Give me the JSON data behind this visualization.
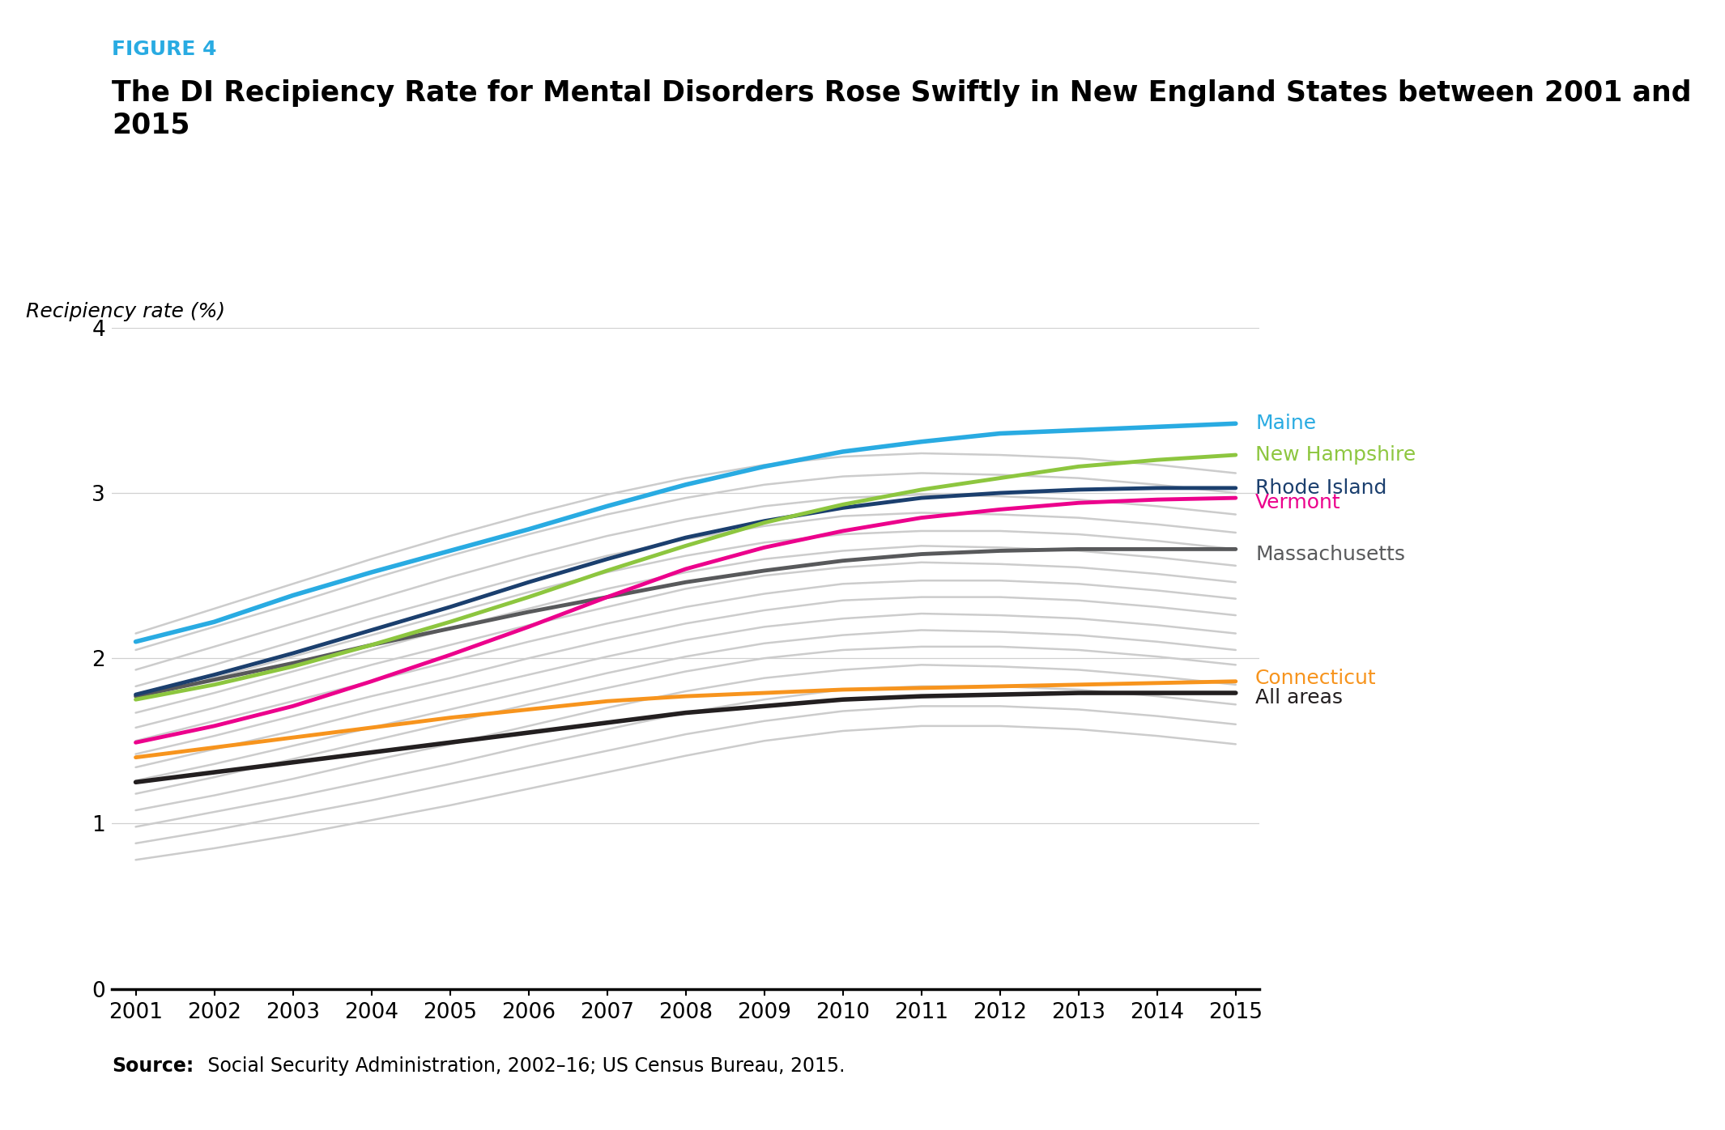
{
  "figure_label": "FIGURE 4",
  "figure_label_color": "#29ABE2",
  "title": "The DI Recipiency Rate for Mental Disorders Rose Swiftly in New England States between 2001 and 2015",
  "ylabel": "Recipiency rate (%)",
  "years": [
    2001,
    2002,
    2003,
    2004,
    2005,
    2006,
    2007,
    2008,
    2009,
    2010,
    2011,
    2012,
    2013,
    2014,
    2015
  ],
  "source_bold": "Source:",
  "source_text": " Social Security Administration, 2002–16; US Census Bureau, 2015.",
  "highlighted_lines": {
    "Maine": {
      "color": "#29ABE2",
      "lw": 4.0,
      "values": [
        2.1,
        2.22,
        2.38,
        2.52,
        2.65,
        2.78,
        2.92,
        3.05,
        3.16,
        3.25,
        3.31,
        3.36,
        3.38,
        3.4,
        3.42
      ]
    },
    "New Hampshire": {
      "color": "#8DC63F",
      "lw": 3.5,
      "values": [
        1.75,
        1.84,
        1.95,
        2.08,
        2.22,
        2.37,
        2.53,
        2.68,
        2.82,
        2.93,
        3.02,
        3.09,
        3.16,
        3.2,
        3.23
      ]
    },
    "Rhode Island": {
      "color": "#1B3F6E",
      "lw": 3.5,
      "values": [
        1.78,
        1.9,
        2.03,
        2.17,
        2.31,
        2.46,
        2.6,
        2.73,
        2.83,
        2.91,
        2.97,
        3.0,
        3.02,
        3.03,
        3.03
      ]
    },
    "Vermont": {
      "color": "#EC008C",
      "lw": 3.5,
      "values": [
        1.49,
        1.59,
        1.71,
        1.86,
        2.02,
        2.19,
        2.37,
        2.54,
        2.67,
        2.77,
        2.85,
        2.9,
        2.94,
        2.96,
        2.97
      ]
    },
    "Massachusetts": {
      "color": "#58595B",
      "lw": 3.5,
      "values": [
        1.77,
        1.87,
        1.97,
        2.08,
        2.18,
        2.28,
        2.37,
        2.46,
        2.53,
        2.59,
        2.63,
        2.65,
        2.66,
        2.66,
        2.66
      ]
    },
    "Connecticut": {
      "color": "#F7941D",
      "lw": 3.5,
      "values": [
        1.4,
        1.46,
        1.52,
        1.58,
        1.64,
        1.69,
        1.74,
        1.77,
        1.79,
        1.81,
        1.82,
        1.83,
        1.84,
        1.85,
        1.86
      ]
    },
    "All areas": {
      "color": "#231F20",
      "lw": 4.0,
      "values": [
        1.25,
        1.31,
        1.37,
        1.43,
        1.49,
        1.55,
        1.61,
        1.67,
        1.71,
        1.75,
        1.77,
        1.78,
        1.79,
        1.79,
        1.79
      ]
    }
  },
  "gray_lines": [
    [
      0.78,
      0.85,
      0.93,
      1.02,
      1.11,
      1.21,
      1.31,
      1.41,
      1.5,
      1.56,
      1.59,
      1.59,
      1.57,
      1.53,
      1.48
    ],
    [
      0.88,
      0.96,
      1.05,
      1.14,
      1.24,
      1.34,
      1.44,
      1.54,
      1.62,
      1.68,
      1.71,
      1.71,
      1.69,
      1.65,
      1.6
    ],
    [
      0.98,
      1.07,
      1.16,
      1.26,
      1.36,
      1.47,
      1.57,
      1.67,
      1.75,
      1.81,
      1.83,
      1.83,
      1.81,
      1.77,
      1.72
    ],
    [
      1.08,
      1.17,
      1.27,
      1.38,
      1.48,
      1.59,
      1.7,
      1.8,
      1.88,
      1.93,
      1.96,
      1.95,
      1.93,
      1.89,
      1.84
    ],
    [
      1.18,
      1.28,
      1.39,
      1.5,
      1.61,
      1.72,
      1.82,
      1.92,
      2.0,
      2.05,
      2.07,
      2.07,
      2.05,
      2.01,
      1.96
    ],
    [
      1.26,
      1.36,
      1.47,
      1.58,
      1.69,
      1.8,
      1.91,
      2.01,
      2.09,
      2.14,
      2.17,
      2.16,
      2.14,
      2.1,
      2.05
    ],
    [
      1.34,
      1.45,
      1.56,
      1.68,
      1.79,
      1.9,
      2.01,
      2.11,
      2.19,
      2.24,
      2.27,
      2.26,
      2.24,
      2.2,
      2.15
    ],
    [
      1.42,
      1.53,
      1.65,
      1.77,
      1.88,
      2.0,
      2.11,
      2.21,
      2.29,
      2.35,
      2.37,
      2.37,
      2.35,
      2.31,
      2.26
    ],
    [
      1.5,
      1.62,
      1.74,
      1.86,
      1.98,
      2.1,
      2.21,
      2.31,
      2.39,
      2.45,
      2.47,
      2.47,
      2.45,
      2.41,
      2.36
    ],
    [
      1.58,
      1.7,
      1.83,
      1.96,
      2.08,
      2.2,
      2.31,
      2.42,
      2.5,
      2.55,
      2.58,
      2.57,
      2.55,
      2.51,
      2.46
    ],
    [
      1.67,
      1.79,
      1.92,
      2.05,
      2.18,
      2.3,
      2.42,
      2.52,
      2.6,
      2.65,
      2.68,
      2.67,
      2.65,
      2.61,
      2.56
    ],
    [
      1.75,
      1.88,
      2.01,
      2.14,
      2.27,
      2.4,
      2.52,
      2.62,
      2.7,
      2.75,
      2.77,
      2.77,
      2.75,
      2.71,
      2.66
    ],
    [
      1.83,
      1.96,
      2.1,
      2.24,
      2.37,
      2.5,
      2.62,
      2.72,
      2.8,
      2.86,
      2.88,
      2.87,
      2.85,
      2.81,
      2.76
    ],
    [
      1.93,
      2.07,
      2.21,
      2.35,
      2.49,
      2.62,
      2.74,
      2.84,
      2.92,
      2.97,
      2.99,
      2.98,
      2.96,
      2.92,
      2.87
    ],
    [
      2.05,
      2.19,
      2.33,
      2.48,
      2.62,
      2.75,
      2.87,
      2.97,
      3.05,
      3.1,
      3.12,
      3.11,
      3.09,
      3.05,
      3.0
    ],
    [
      2.15,
      2.3,
      2.45,
      2.6,
      2.74,
      2.87,
      2.99,
      3.09,
      3.17,
      3.22,
      3.24,
      3.23,
      3.21,
      3.17,
      3.12
    ]
  ],
  "annotations": {
    "Maine": {
      "y": 3.42,
      "color": "#29ABE2"
    },
    "New Hampshire": {
      "y": 3.23,
      "color": "#8DC63F"
    },
    "Rhode Island": {
      "y": 3.03,
      "color": "#1B3F6E"
    },
    "Vermont": {
      "y": 2.94,
      "color": "#EC008C"
    },
    "Massachusetts": {
      "y": 2.63,
      "color": "#58595B"
    },
    "Connecticut": {
      "y": 1.88,
      "color": "#F7941D"
    },
    "All areas": {
      "y": 1.76,
      "color": "#231F20"
    }
  },
  "ylim": [
    0,
    4.0
  ],
  "yticks": [
    0,
    1,
    2,
    3,
    4
  ],
  "xlim": [
    2001,
    2015
  ],
  "background_color": "#ffffff"
}
